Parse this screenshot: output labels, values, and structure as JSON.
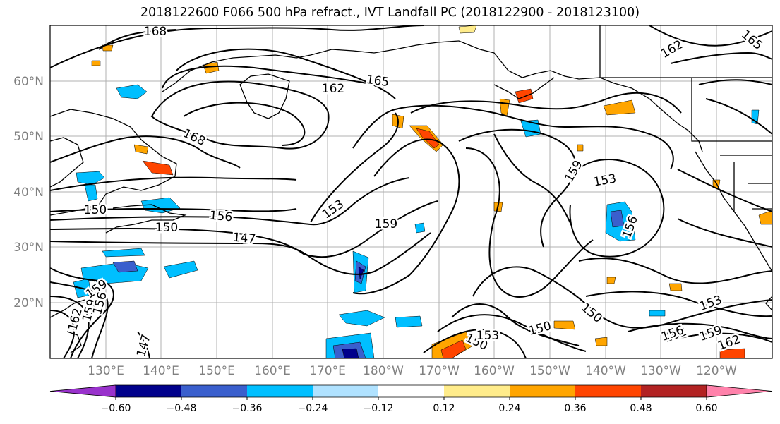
{
  "title": "2018122600 F066 500 hPa refract., IVT Landfall PC (2018122900 - 2018123100)",
  "axes": {
    "lat_labels": [
      "60°N",
      "50°N",
      "40°N",
      "30°N",
      "20°N"
    ],
    "lon_labels": [
      "130°E",
      "140°E",
      "150°E",
      "160°E",
      "170°E",
      "180°W",
      "170°W",
      "160°W",
      "150°W",
      "140°W",
      "130°W",
      "120°W"
    ]
  },
  "contour_labels": [
    {
      "text": "168",
      "rot": 0
    },
    {
      "text": "165",
      "rot": 8
    },
    {
      "text": "162",
      "rot": 0
    },
    {
      "text": "168",
      "rot": 25
    },
    {
      "text": "162",
      "rot": -30
    },
    {
      "text": "165",
      "rot": 40
    },
    {
      "text": "159",
      "rot": -60
    },
    {
      "text": "153",
      "rot": -10
    },
    {
      "text": "156",
      "rot": -70
    },
    {
      "text": "159",
      "rot": 0
    },
    {
      "text": "156",
      "rot": 5
    },
    {
      "text": "150",
      "rot": 0
    },
    {
      "text": "147",
      "rot": 5
    },
    {
      "text": "153",
      "rot": -35
    },
    {
      "text": "159",
      "rot": -35
    },
    {
      "text": "150",
      "rot": 0
    },
    {
      "text": "162",
      "rot": -75
    },
    {
      "text": "159",
      "rot": -75
    },
    {
      "text": "156",
      "rot": -75
    },
    {
      "text": "147",
      "rot": -75
    },
    {
      "text": "150",
      "rot": 25
    },
    {
      "text": "150",
      "rot": 40
    },
    {
      "text": "153",
      "rot": 0
    },
    {
      "text": "162",
      "rot": -20
    },
    {
      "text": "150",
      "rot": -15
    },
    {
      "text": "153",
      "rot": -20
    },
    {
      "text": "156",
      "rot": -20
    },
    {
      "text": "159",
      "rot": -20
    },
    {
      "text": "162",
      "rot": -20
    }
  ],
  "colorbar": {
    "colors": [
      "#9932cc",
      "#00008b",
      "#3a5fcd",
      "#00bfff",
      "#b0e2ff",
      "#ffffff",
      "#ffec8b",
      "#ffa500",
      "#ff4500",
      "#b22222",
      "#ff82ab"
    ],
    "ticks": [
      "−0.60",
      "−0.48",
      "−0.36",
      "−0.24",
      "−0.12",
      "0.12",
      "0.24",
      "0.36",
      "0.48",
      "0.60"
    ]
  }
}
